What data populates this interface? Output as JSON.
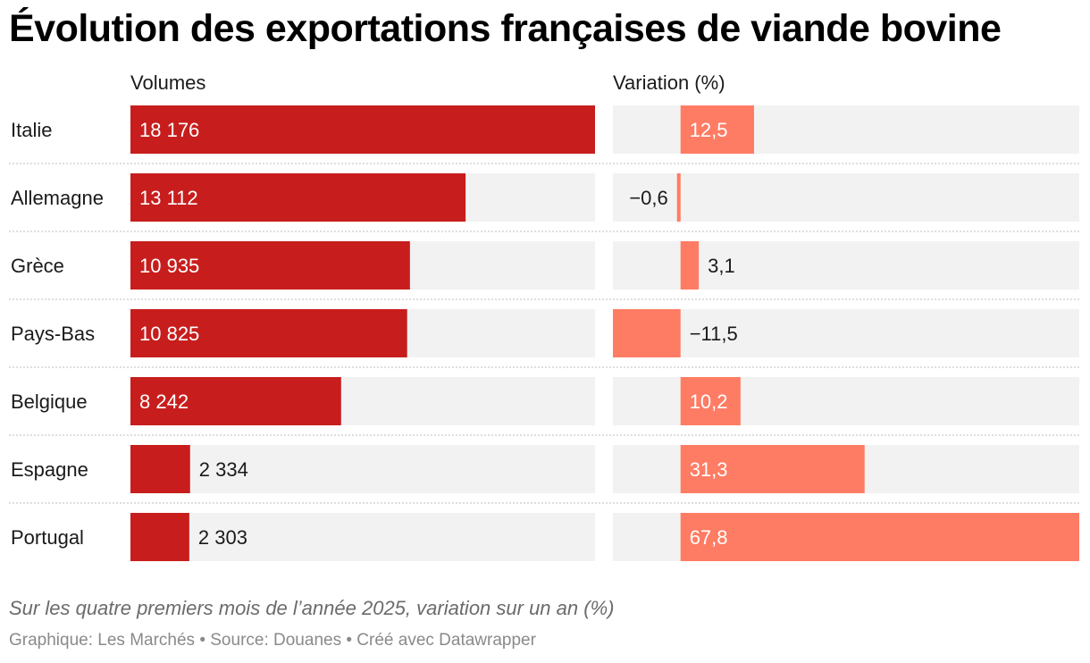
{
  "title": "Évolution des exportations françaises de viande bovine",
  "columns": {
    "volumes": "Volumes",
    "variation": "Variation (%)"
  },
  "chart_data": {
    "type": "bar",
    "title": "Évolution des exportations françaises de viande bovine",
    "categories": [
      "Italie",
      "Allemagne",
      "Grèce",
      "Pays-Bas",
      "Belgique",
      "Espagne",
      "Portugal"
    ],
    "series": [
      {
        "name": "Volumes",
        "values": [
          18176,
          13112,
          10935,
          10825,
          8242,
          2334,
          2303
        ],
        "labels": [
          "18 176",
          "13 112",
          "10 935",
          "10 825",
          "8 242",
          "2 334",
          "2 303"
        ],
        "color": "#c71e1d",
        "xlim": [
          0,
          18176
        ]
      },
      {
        "name": "Variation (%)",
        "values": [
          12.5,
          -0.6,
          3.1,
          -11.5,
          10.2,
          31.3,
          67.8
        ],
        "labels": [
          "12,5",
          "−0,6",
          "3,1",
          "−11,5",
          "10,2",
          "31,3",
          "67,8"
        ],
        "color": "#ff7c64",
        "xlim": [
          -11.5,
          67.8
        ]
      }
    ],
    "background_color": "#f2f2f2",
    "legend": "none"
  },
  "notes": "Sur les quatre premiers mois de l’année 2025, variation sur un an (%)",
  "credits": "Graphique: Les Marchés • Source: Douanes • Créé avec Datawrapper"
}
